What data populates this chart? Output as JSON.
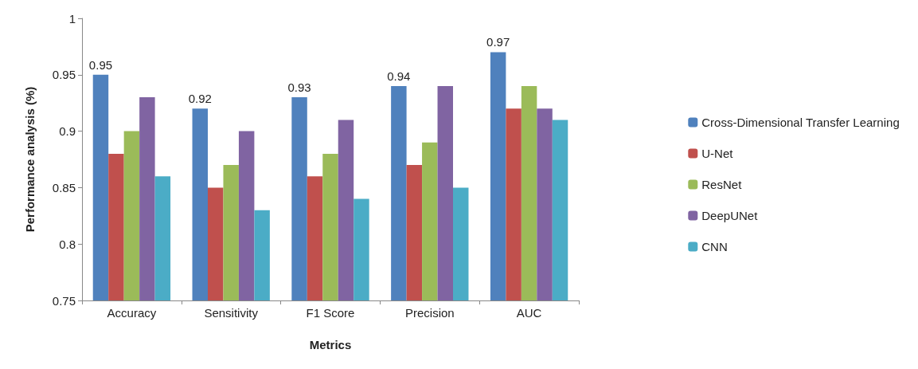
{
  "chart_data": {
    "type": "bar",
    "xlabel": "Metrics",
    "ylabel": "Performance analysis (%)",
    "categories": [
      "Accuracy",
      "Sensitivity",
      "F1 Score",
      "Precision",
      "AUC"
    ],
    "series": [
      {
        "name": "Cross-Dimensional Transfer Learning",
        "color": "#4f81bd",
        "values": [
          0.95,
          0.92,
          0.93,
          0.94,
          0.97
        ],
        "value_labels": [
          "0.95",
          "0.92",
          "0.93",
          "0.94",
          "0.97"
        ]
      },
      {
        "name": "U-Net",
        "color": "#c0504d",
        "values": [
          0.88,
          0.85,
          0.86,
          0.87,
          0.92
        ]
      },
      {
        "name": "ResNet",
        "color": "#9bbb59",
        "values": [
          0.9,
          0.87,
          0.88,
          0.89,
          0.94
        ]
      },
      {
        "name": "DeepUNet",
        "color": "#8064a2",
        "values": [
          0.93,
          0.9,
          0.91,
          0.94,
          0.92
        ]
      },
      {
        "name": "CNN",
        "color": "#4bacc6",
        "values": [
          0.86,
          0.83,
          0.84,
          0.85,
          0.91
        ]
      }
    ],
    "ylim": [
      0.75,
      1
    ],
    "yticks": [
      0.75,
      0.8,
      0.85,
      0.9,
      0.95,
      1
    ],
    "grid": false,
    "legend": "right"
  }
}
